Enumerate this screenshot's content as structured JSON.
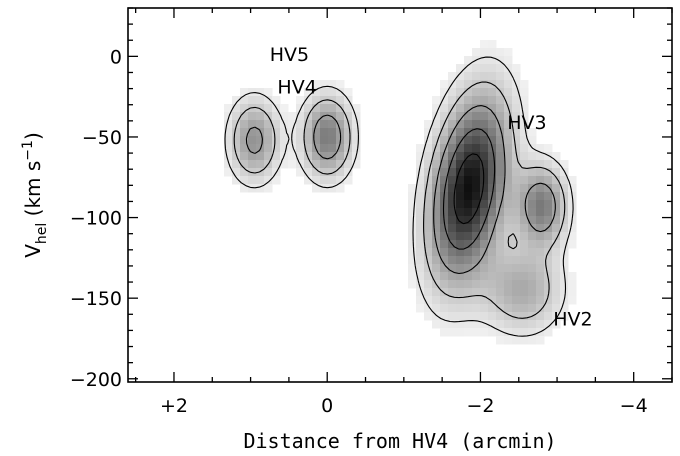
{
  "chart_data": {
    "type": "heatmap",
    "title": "",
    "xlabel": "Distance from HV4 (arcmin)",
    "ylabel_main": "V",
    "ylabel_sub": "hel",
    "ylabel_units_open": "(km s",
    "ylabel_units_exp": "−1",
    "ylabel_units_close": ")",
    "xlim": [
      2.6,
      -4.5
    ],
    "ylim": [
      -202,
      30
    ],
    "x_ticks": [
      {
        "value": 2,
        "label": "+2"
      },
      {
        "value": 0,
        "label": "0"
      },
      {
        "value": -2,
        "label": "−2"
      },
      {
        "value": -4,
        "label": "−4"
      }
    ],
    "y_ticks": [
      {
        "value": 0,
        "label": "0"
      },
      {
        "value": -50,
        "label": "−50"
      },
      {
        "value": -100,
        "label": "−100"
      },
      {
        "value": -150,
        "label": "−150"
      },
      {
        "value": -200,
        "label": "−200"
      }
    ],
    "labels": [
      {
        "text": "HV5",
        "x": 0.75,
        "y": -3
      },
      {
        "text": "HV4",
        "x": 0.65,
        "y": -23
      },
      {
        "text": "HV3",
        "x": -2.35,
        "y": -45
      },
      {
        "text": "HV2",
        "x": -2.95,
        "y": -167
      }
    ],
    "clouds": [
      {
        "name": "HV3",
        "x": -1.85,
        "y": -82,
        "peak": 1.0
      },
      {
        "name": "HV4",
        "x": 0.0,
        "y": -50,
        "peak": 0.55
      },
      {
        "name": "HV5",
        "x": 0.95,
        "y": -52,
        "peak": 0.45
      },
      {
        "name": "HV2",
        "x": -2.8,
        "y": -93,
        "peak": 0.55
      },
      {
        "name": "HV2-tail",
        "x": -2.55,
        "y": -145,
        "peak": 0.35
      }
    ],
    "grid": false,
    "legend": "none"
  }
}
